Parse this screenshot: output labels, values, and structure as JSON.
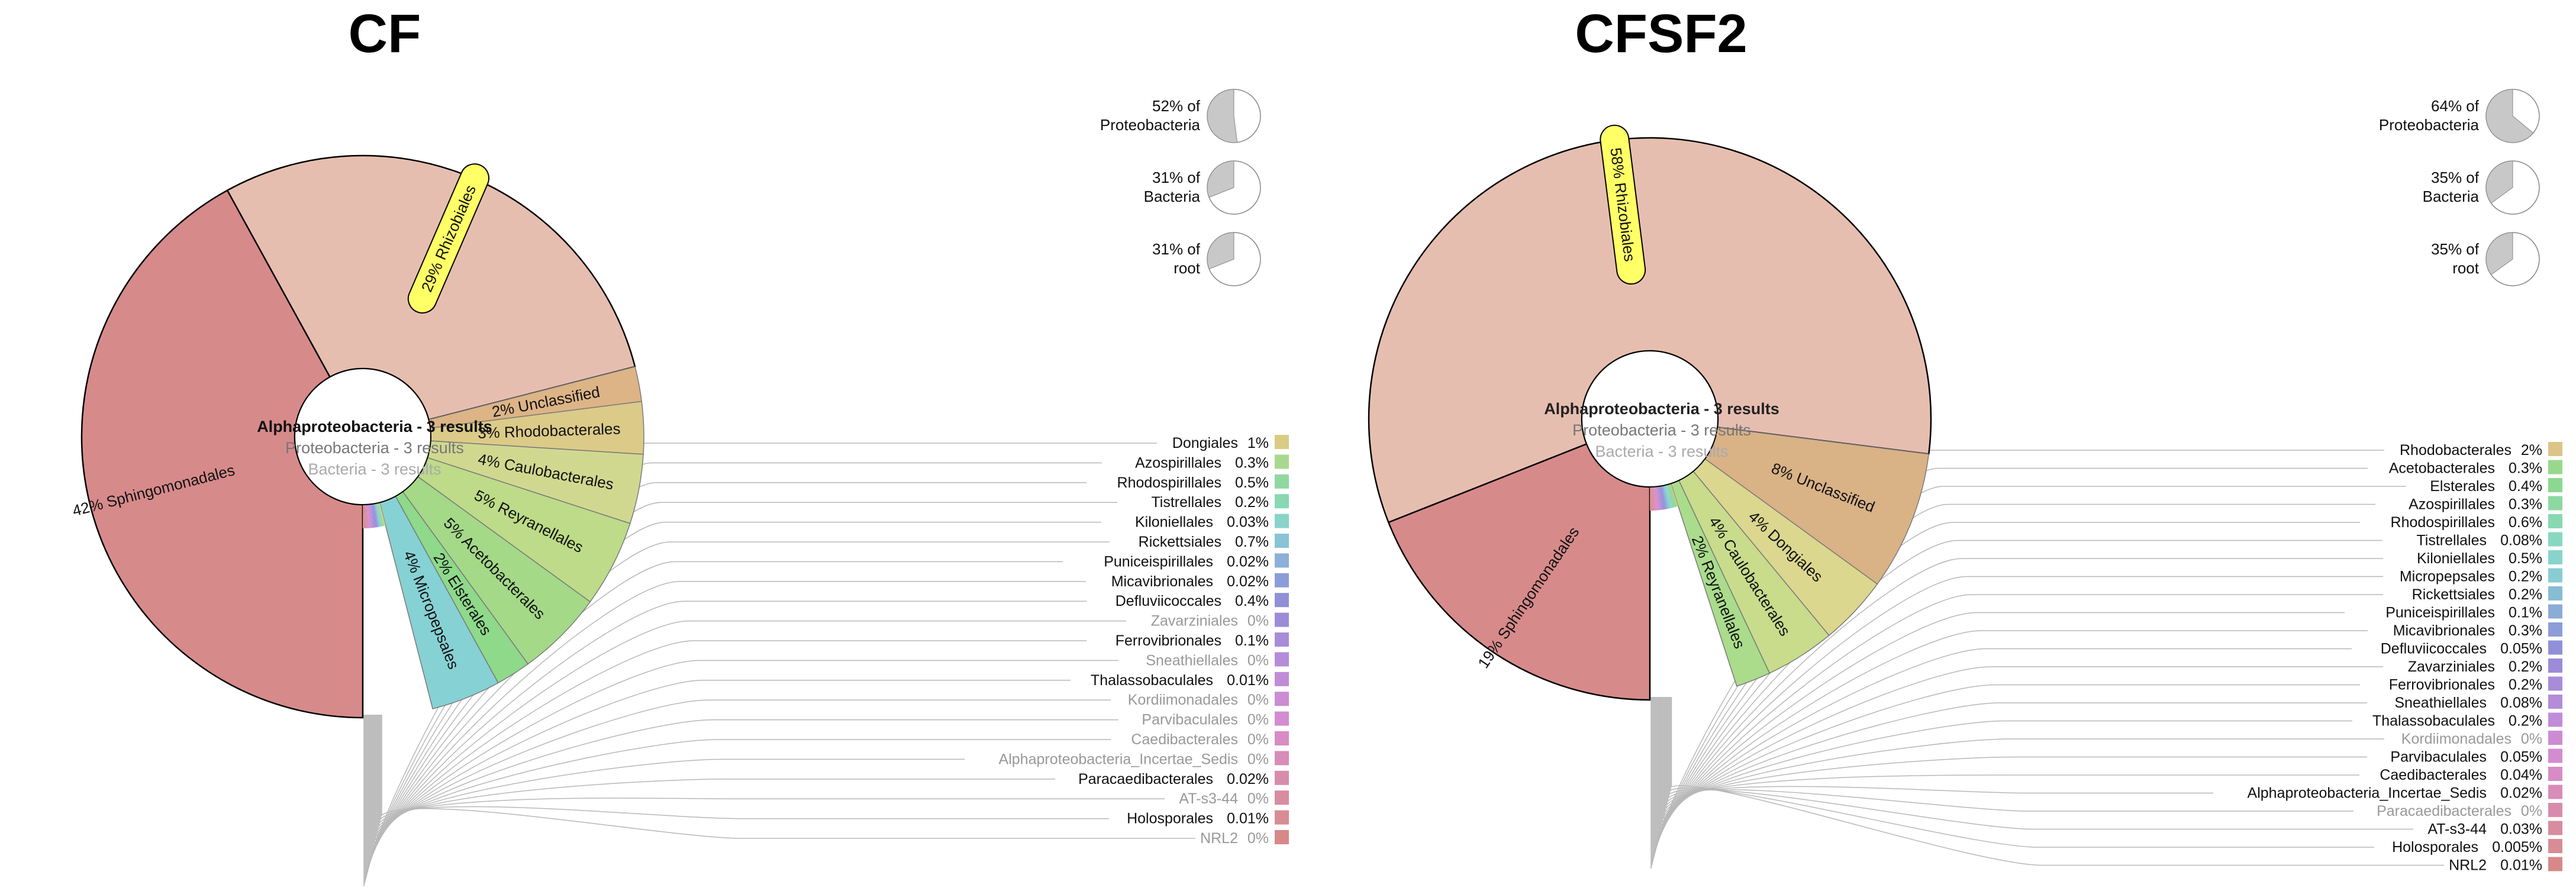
{
  "panels": [
    {
      "title": "CF",
      "center": {
        "line1": "Alphaproteobacteria - 3 results",
        "line2": "Proteobacteria - 3 results",
        "line3": "Bacteria - 3 results"
      },
      "ancestors": [
        {
          "label": "52% of Proteobacteria",
          "line1": "52% of",
          "line2": "Proteobacteria",
          "fraction": 0.52
        },
        {
          "label": "31% of Bacteria",
          "line1": "31% of",
          "line2": "Bacteria",
          "fraction": 0.31
        },
        {
          "label": "31% of root",
          "line1": "31% of",
          "line2": "root",
          "fraction": 0.31
        }
      ],
      "highlighted": "Rhizobiales",
      "chart_data": {
        "type": "pie",
        "title": "CF",
        "subtitle": "Alphaproteobacteria - 3 results",
        "slices": [
          {
            "name": "Rhizobiales",
            "percent": 29,
            "label": "29%",
            "color": "#e6beb0"
          },
          {
            "name": "Unclassified",
            "percent": 2,
            "label": "2%",
            "color": "#ddb486"
          },
          {
            "name": "Rhodobacterales",
            "percent": 3,
            "label": "3%",
            "color": "#dcca88"
          },
          {
            "name": "Caulobacterales",
            "percent": 4,
            "label": "4%",
            "color": "#d0d890"
          },
          {
            "name": "Reyranellales",
            "percent": 5,
            "label": "5%",
            "color": "#bddb88"
          },
          {
            "name": "Acetobacterales",
            "percent": 5,
            "label": "5%",
            "color": "#a4d988"
          },
          {
            "name": "Elsterales",
            "percent": 2,
            "label": "2%",
            "color": "#8ed98a"
          },
          {
            "name": "Micropepsales",
            "percent": 4,
            "label": "4%",
            "color": "#86d1d4"
          },
          {
            "name": "Sphingomonadales",
            "percent": 42,
            "label": "42%",
            "color": "#d78a8a"
          }
        ],
        "legend": [
          {
            "name": "Dongiales",
            "value": "1%",
            "color": "#d8cc84",
            "zero": false
          },
          {
            "name": "Azospirillales",
            "value": "0.3%",
            "color": "#a8d890",
            "zero": false
          },
          {
            "name": "Rhodospirillales",
            "value": "0.5%",
            "color": "#90d8a0",
            "zero": false
          },
          {
            "name": "Tistrellales",
            "value": "0.2%",
            "color": "#88d8b4",
            "zero": false
          },
          {
            "name": "Kiloniellales",
            "value": "0.03%",
            "color": "#88d4c8",
            "zero": false
          },
          {
            "name": "Rickettsiales",
            "value": "0.7%",
            "color": "#88c4d4",
            "zero": false
          },
          {
            "name": "Puniceispirillales",
            "value": "0.02%",
            "color": "#8cb0d8",
            "zero": false
          },
          {
            "name": "Micavibrionales",
            "value": "0.02%",
            "color": "#8c9cd8",
            "zero": false
          },
          {
            "name": "Defluviicoccales",
            "value": "0.4%",
            "color": "#9090d8",
            "zero": false
          },
          {
            "name": "Zavarziniales",
            "value": "0%",
            "color": "#9c8cd8",
            "zero": true
          },
          {
            "name": "Ferrovibrionales",
            "value": "0.1%",
            "color": "#a88cd8",
            "zero": false
          },
          {
            "name": "Sneathiellales",
            "value": "0%",
            "color": "#b48cd8",
            "zero": true
          },
          {
            "name": "Thalassobaculales",
            "value": "0.01%",
            "color": "#c08cd8",
            "zero": false
          },
          {
            "name": "Kordiimonadales",
            "value": "0%",
            "color": "#cc8cd4",
            "zero": true
          },
          {
            "name": "Parvibaculales",
            "value": "0%",
            "color": "#d48cd0",
            "zero": true
          },
          {
            "name": "Caedibacterales",
            "value": "0%",
            "color": "#d88cc4",
            "zero": true
          },
          {
            "name": "Alphaproteobacteria_Incertae_Sedis",
            "value": "0%",
            "color": "#d88cb8",
            "zero": true
          },
          {
            "name": "Paracaedibacterales",
            "value": "0.02%",
            "color": "#d88cac",
            "zero": false
          },
          {
            "name": "AT-s3-44",
            "value": "0%",
            "color": "#d88ca0",
            "zero": true
          },
          {
            "name": "Holosporales",
            "value": "0.01%",
            "color": "#d88c94",
            "zero": false
          },
          {
            "name": "NRL2",
            "value": "0%",
            "color": "#d88888",
            "zero": true
          }
        ]
      }
    },
    {
      "title": "CFSF2",
      "center": {
        "line1": "Alphaproteobacteria - 3 results",
        "line2": "Proteobacteria - 3 results",
        "line3": "Bacteria - 3 results"
      },
      "ancestors": [
        {
          "label": "64% of Proteobacteria",
          "line1": "64% of",
          "line2": "Proteobacteria",
          "fraction": 0.64
        },
        {
          "label": "35% of Bacteria",
          "line1": "35% of",
          "line2": "Bacteria",
          "fraction": 0.35
        },
        {
          "label": "35% of root",
          "line1": "35% of",
          "line2": "root",
          "fraction": 0.35
        }
      ],
      "highlighted": "Rhizobiales",
      "chart_data": {
        "type": "pie",
        "title": "CFSF2",
        "subtitle": "Alphaproteobacteria - 3 results",
        "slices": [
          {
            "name": "Rhizobiales",
            "percent": 58,
            "label": "58%",
            "color": "#e6beb0"
          },
          {
            "name": "Unclassified",
            "percent": 8,
            "label": "8%",
            "color": "#d9b286"
          },
          {
            "name": "Dongiales",
            "percent": 4,
            "label": "4%",
            "color": "#dcd78e"
          },
          {
            "name": "Caulobacterales",
            "percent": 4,
            "label": "4%",
            "color": "#c8dc8c"
          },
          {
            "name": "Reyranellales",
            "percent": 2,
            "label": "2%",
            "color": "#aadc8c"
          },
          {
            "name": "Sphingomonadales",
            "percent": 19,
            "label": "19%",
            "color": "#d78a8a"
          }
        ],
        "legend": [
          {
            "name": "Rhodobacterales",
            "value": "2%",
            "color": "#dcc488",
            "zero": false
          },
          {
            "name": "Acetobacterales",
            "value": "0.3%",
            "color": "#98d88c",
            "zero": false
          },
          {
            "name": "Elsterales",
            "value": "0.4%",
            "color": "#8cd890",
            "zero": false
          },
          {
            "name": "Azospirillales",
            "value": "0.3%",
            "color": "#8cd8a0",
            "zero": false
          },
          {
            "name": "Rhodospirillales",
            "value": "0.6%",
            "color": "#88d8b0",
            "zero": false
          },
          {
            "name": "Tistrellales",
            "value": "0.08%",
            "color": "#88d8c0",
            "zero": false
          },
          {
            "name": "Kiloniellales",
            "value": "0.5%",
            "color": "#88d4cc",
            "zero": false
          },
          {
            "name": "Micropepsales",
            "value": "0.2%",
            "color": "#88ccd4",
            "zero": false
          },
          {
            "name": "Rickettsiales",
            "value": "0.2%",
            "color": "#88bcd4",
            "zero": false
          },
          {
            "name": "Puniceispirillales",
            "value": "0.1%",
            "color": "#8cacd8",
            "zero": false
          },
          {
            "name": "Micavibrionales",
            "value": "0.3%",
            "color": "#8c9cd8",
            "zero": false
          },
          {
            "name": "Defluviicoccales",
            "value": "0.05%",
            "color": "#9090d8",
            "zero": false
          },
          {
            "name": "Zavarziniales",
            "value": "0.2%",
            "color": "#9c8cd8",
            "zero": false
          },
          {
            "name": "Ferrovibrionales",
            "value": "0.2%",
            "color": "#a88cd8",
            "zero": false
          },
          {
            "name": "Sneathiellales",
            "value": "0.08%",
            "color": "#b48cd8",
            "zero": false
          },
          {
            "name": "Thalassobaculales",
            "value": "0.2%",
            "color": "#c08cd8",
            "zero": false
          },
          {
            "name": "Kordiimonadales",
            "value": "0%",
            "color": "#cc8cd4",
            "zero": true
          },
          {
            "name": "Parvibaculales",
            "value": "0.05%",
            "color": "#d48cd0",
            "zero": false
          },
          {
            "name": "Caedibacterales",
            "value": "0.04%",
            "color": "#d88cc4",
            "zero": false
          },
          {
            "name": "Alphaproteobacteria_Incertae_Sedis",
            "value": "0.02%",
            "color": "#d88cb8",
            "zero": false
          },
          {
            "name": "Paracaedibacterales",
            "value": "0%",
            "color": "#d88cac",
            "zero": true
          },
          {
            "name": "AT-s3-44",
            "value": "0.03%",
            "color": "#d88ca0",
            "zero": false
          },
          {
            "name": "Holosporales",
            "value": "0.005%",
            "color": "#d88c94",
            "zero": false
          },
          {
            "name": "NRL2",
            "value": "0.01%",
            "color": "#d88888",
            "zero": false
          }
        ]
      }
    }
  ]
}
